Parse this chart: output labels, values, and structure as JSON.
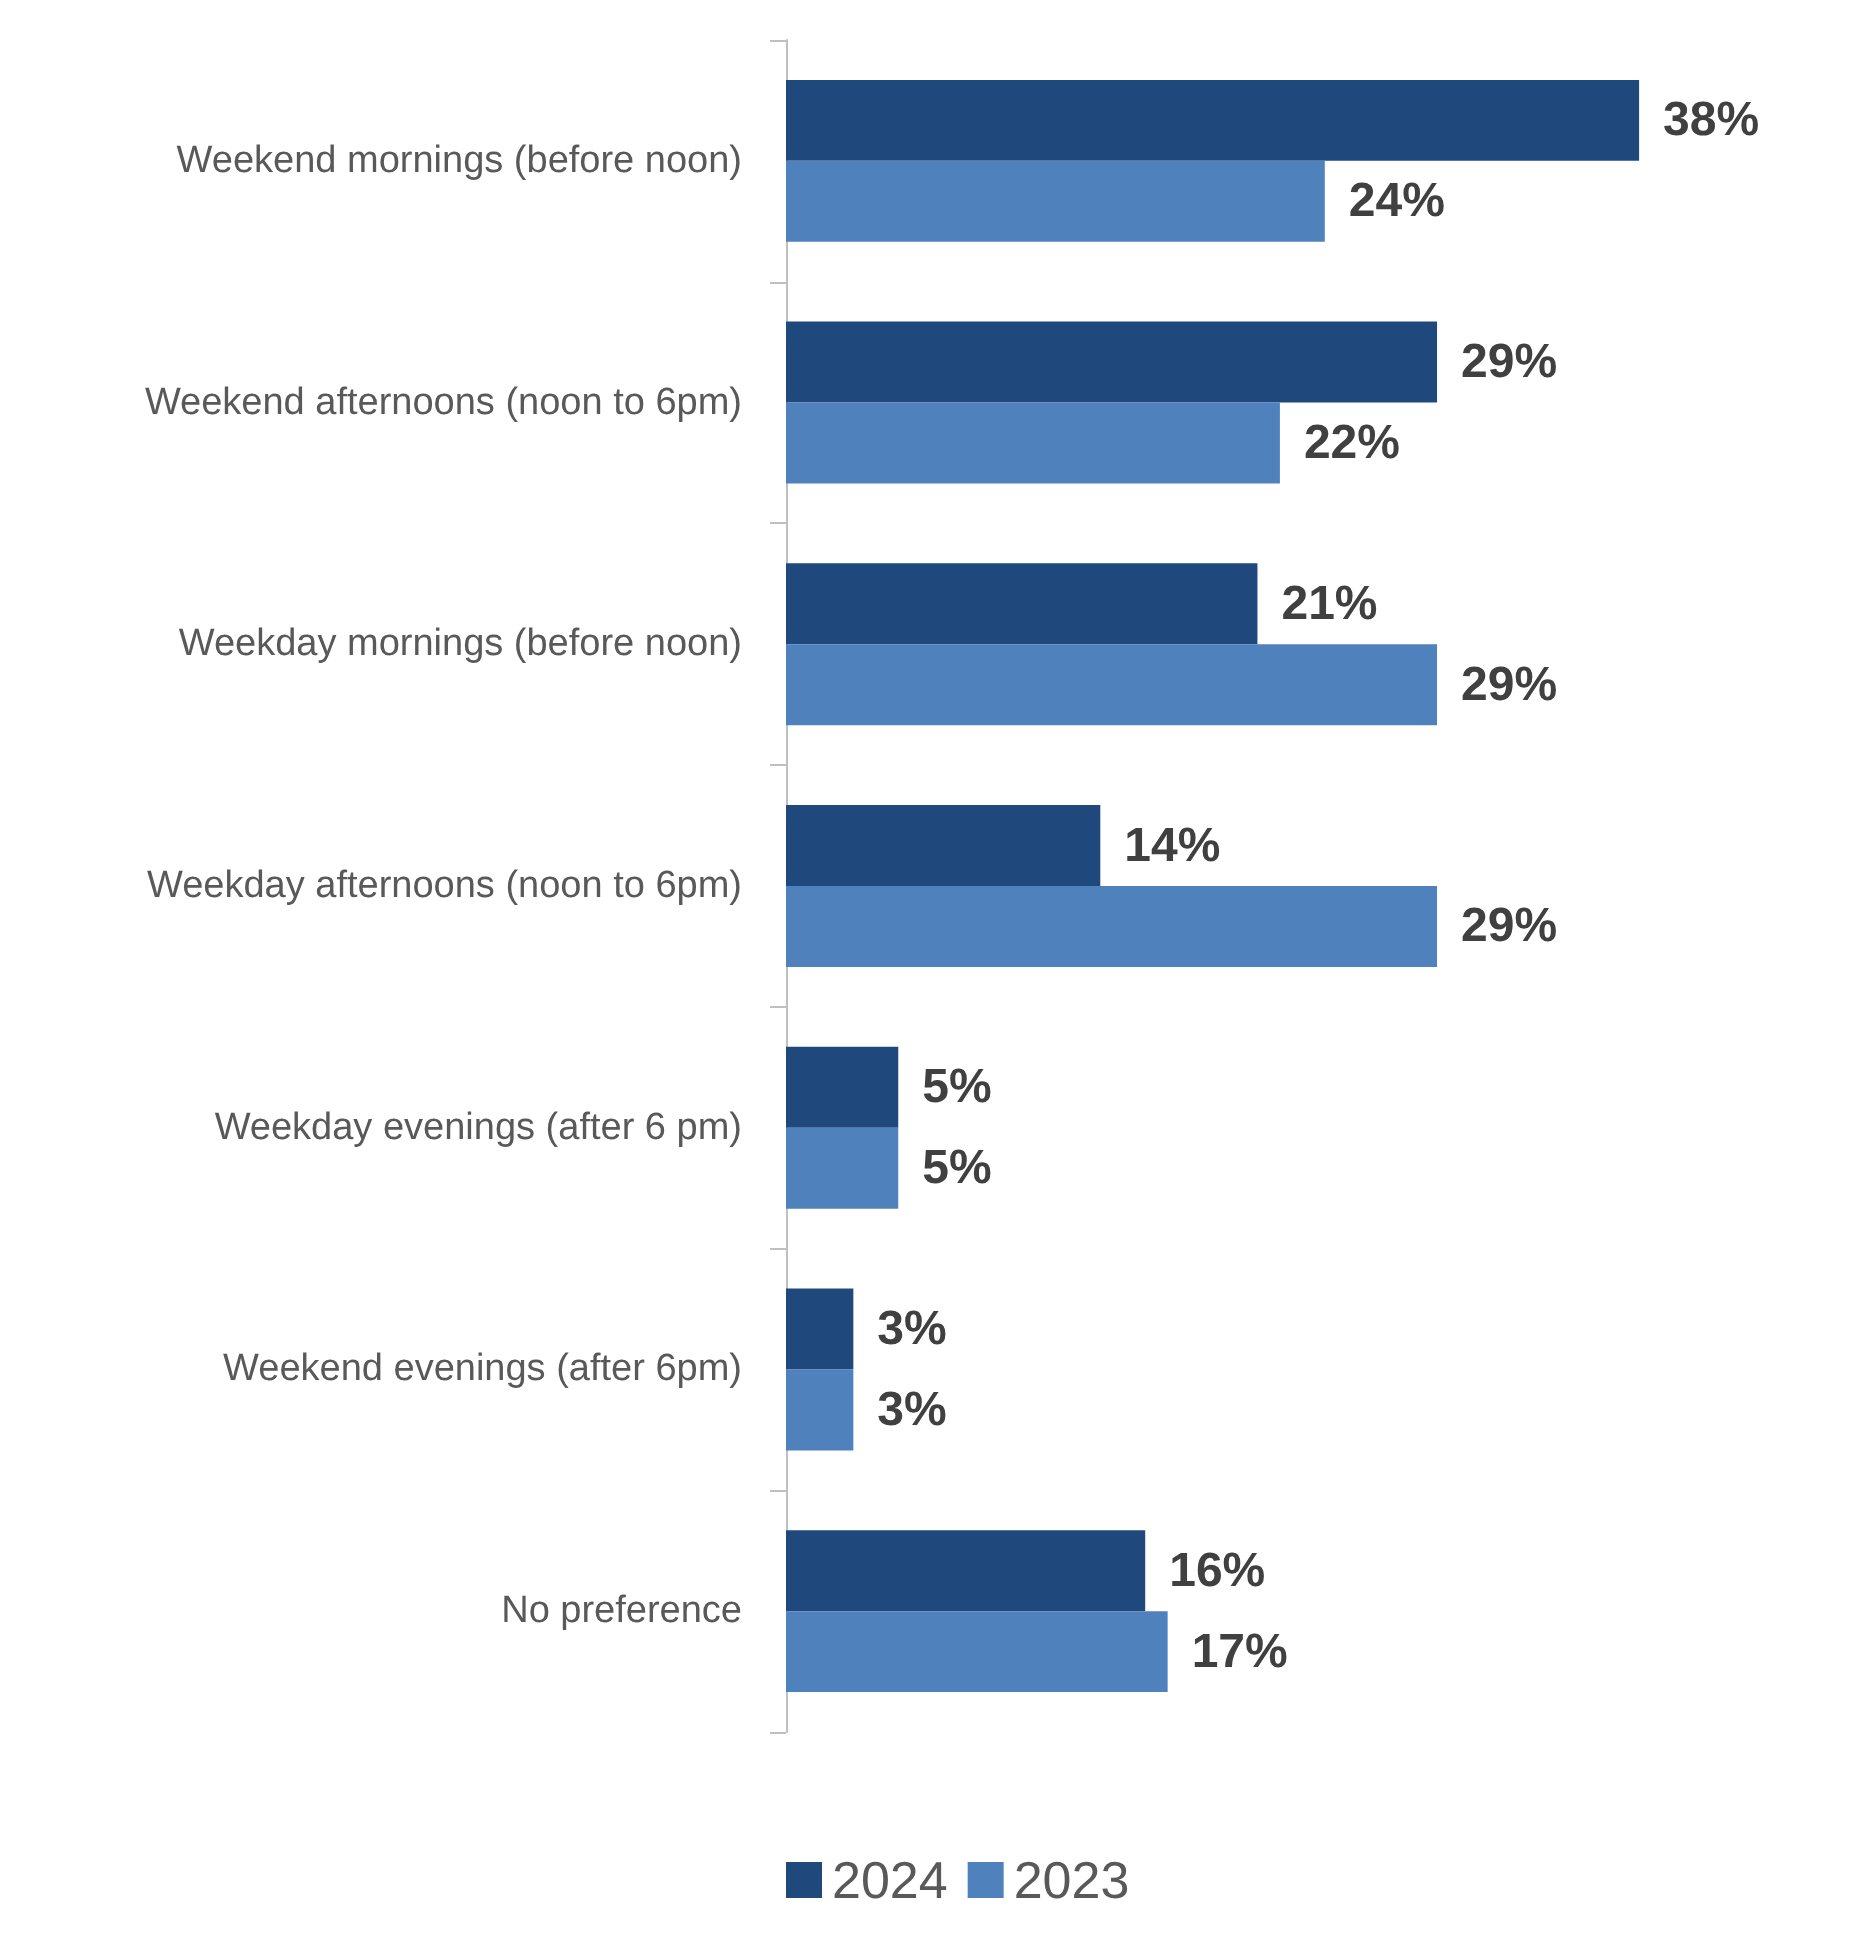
{
  "chart_data": {
    "type": "bar",
    "orientation": "horizontal",
    "categories": [
      "Weekend mornings (before noon)",
      "Weekend afternoons (noon to 6pm)",
      "Weekday mornings (before noon)",
      "Weekday afternoons (noon to 6pm)",
      "Weekday evenings (after 6 pm)",
      "Weekend evenings (after 6pm)",
      "No preference"
    ],
    "series": [
      {
        "name": "2024",
        "color": "#1f497d",
        "values": [
          38,
          29,
          21,
          14,
          5,
          3,
          16
        ],
        "value_labels": [
          "38%",
          "29%",
          "21%",
          "14%",
          "5%",
          "3%",
          "16%"
        ]
      },
      {
        "name": "2023",
        "color": "#4f81bd",
        "values": [
          24,
          22,
          29,
          29,
          5,
          3,
          17
        ],
        "value_labels": [
          "24%",
          "22%",
          "29%",
          "29%",
          "5%",
          "3%",
          "17%"
        ]
      }
    ],
    "legend": "bottom"
  }
}
